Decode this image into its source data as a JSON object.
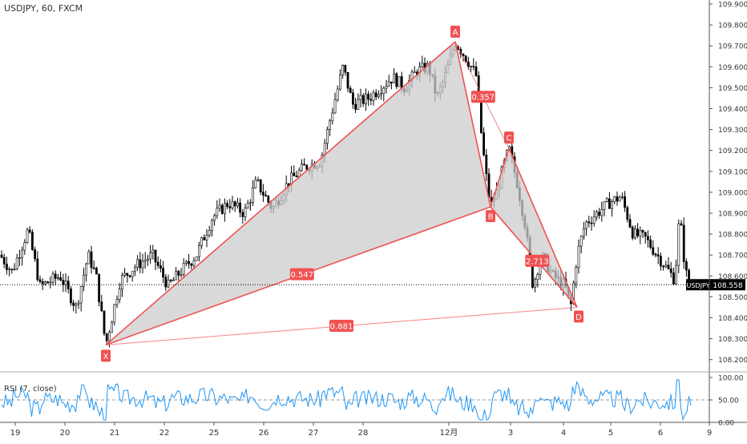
{
  "chart_data": [
    {
      "type": "candlestick",
      "title": "USDJPY, 60, FXCM",
      "symbol": "USDJPY",
      "last_price": "108.558",
      "ylim": [
        108.1,
        109.9
      ],
      "y_ticks": [
        "109.900",
        "109.800",
        "109.700",
        "109.600",
        "109.500",
        "109.400",
        "109.300",
        "109.200",
        "109.100",
        "109.000",
        "108.900",
        "108.800",
        "108.700",
        "108.600",
        "108.500",
        "108.400",
        "108.300",
        "108.200"
      ],
      "x_ticks": [
        "19",
        "20",
        "21",
        "22",
        "25",
        "26",
        "27",
        "28",
        "12月",
        "3",
        "4",
        "5",
        "6",
        "9"
      ],
      "grid": false,
      "colors": {
        "up": "#ffffff",
        "down": "#000000",
        "pattern_line": "#f05252",
        "pattern_fill": "#cccccc",
        "label_bg": "#f05252",
        "price_tag": "#000000"
      },
      "harmonic_pattern": {
        "points": [
          {
            "label": "X",
            "date": "21",
            "price": 108.27
          },
          {
            "label": "A",
            "date": "12月",
            "price": 109.72
          },
          {
            "label": "B",
            "date": "3",
            "price": 108.93
          },
          {
            "label": "C",
            "date": "3",
            "price": 109.21
          },
          {
            "label": "D",
            "date": "4",
            "price": 108.45
          }
        ],
        "ratios": [
          {
            "label": "0.547",
            "between": "X-B"
          },
          {
            "label": "0.357",
            "between": "A-C"
          },
          {
            "label": "2.713",
            "between": "B-D"
          },
          {
            "label": "0.881",
            "between": "X-D"
          }
        ]
      }
    },
    {
      "type": "line",
      "title": "RSI (7, close)",
      "ylim": [
        0,
        100
      ],
      "y_ticks": [
        "100.00",
        "50.00",
        "0.00"
      ],
      "reference_line": 50,
      "colors": {
        "line": "#2196f3"
      }
    }
  ]
}
